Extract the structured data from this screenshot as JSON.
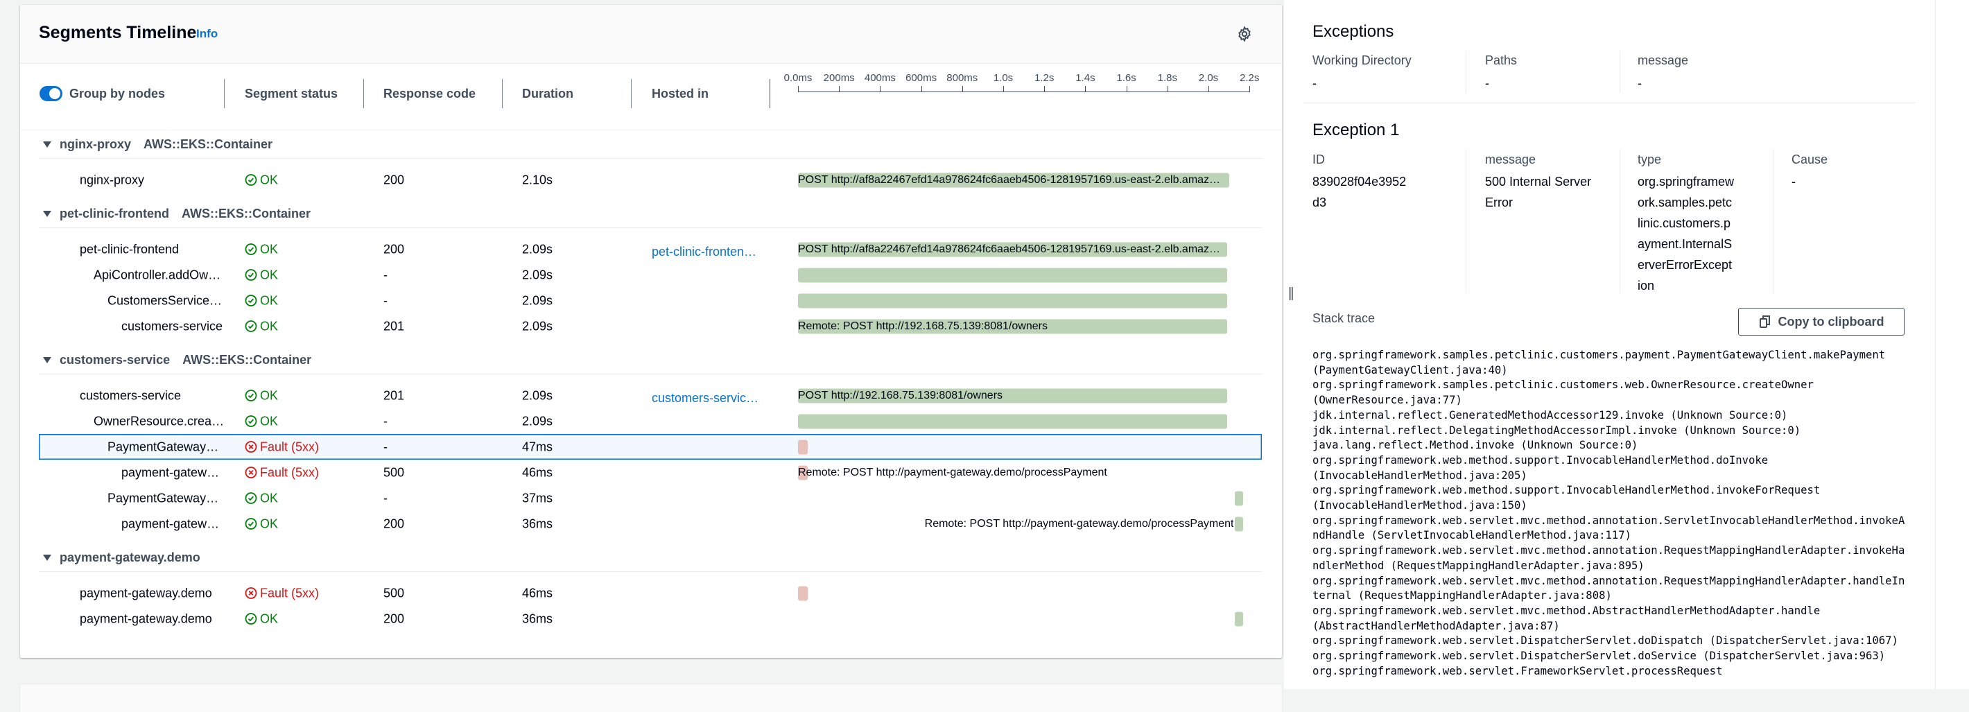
{
  "segments": {
    "title": "Segments Timeline",
    "info_link": "Info",
    "settings_icon": "gear-icon",
    "group_by_nodes": {
      "label": "Group by nodes",
      "enabled": true
    },
    "columns": [
      "Segment status",
      "Response code",
      "Duration",
      "Hosted in"
    ],
    "axis_ticks": [
      "0.0ms",
      "200ms",
      "400ms",
      "600ms",
      "800ms",
      "1.0s",
      "1.2s",
      "1.4s",
      "1.6s",
      "1.8s",
      "2.0s",
      "2.2s"
    ],
    "axis_max_s": 2.2,
    "colors": {
      "ok": "#037f0c",
      "fault": "#d91515",
      "ok_bar": "#bdd3b5",
      "fault_bar": "#e8c0ba",
      "link": "#0972d3"
    },
    "groups": [
      {
        "name": "nginx-proxy",
        "type": "AWS::EKS::Container",
        "rows": [
          {
            "name": "nginx-proxy",
            "level": 0,
            "status": "OK",
            "code": "200",
            "duration": "2.10s",
            "hosted_in": "",
            "start_s": 0,
            "dur_s": 2.1,
            "bar_label": "POST http://af8a22467efd14a978624fc6aaeb4506-1281957169.us-east-2.elb.amaz…"
          }
        ]
      },
      {
        "name": "pet-clinic-frontend",
        "type": "AWS::EKS::Container",
        "rows": [
          {
            "name": "pet-clinic-frontend",
            "level": 0,
            "status": "OK",
            "code": "200",
            "duration": "2.09s",
            "hosted_in": "pet-clinic-fronten…",
            "start_s": 0,
            "dur_s": 2.09,
            "bar_label": "POST http://af8a22467efd14a978624fc6aaeb4506-1281957169.us-east-2.elb.amaz…"
          },
          {
            "name": "ApiController.addOwner",
            "level": 1,
            "status": "OK",
            "code": "-",
            "duration": "2.09s",
            "hosted_in": "",
            "start_s": 0,
            "dur_s": 2.09,
            "bar_label": ""
          },
          {
            "name": "CustomersServiceCli…",
            "level": 2,
            "status": "OK",
            "code": "-",
            "duration": "2.09s",
            "hosted_in": "",
            "start_s": 0,
            "dur_s": 2.09,
            "bar_label": ""
          },
          {
            "name": "customers-service",
            "level": 3,
            "status": "OK",
            "code": "201",
            "duration": "2.09s",
            "hosted_in": "",
            "start_s": 0,
            "dur_s": 2.09,
            "bar_label": "Remote: POST http://192.168.75.139:8081/owners"
          }
        ]
      },
      {
        "name": "customers-service",
        "type": "AWS::EKS::Container",
        "rows": [
          {
            "name": "customers-service",
            "level": 0,
            "status": "OK",
            "code": "201",
            "duration": "2.09s",
            "hosted_in": "customers-servic…",
            "start_s": 0,
            "dur_s": 2.09,
            "bar_label": "POST http://192.168.75.139:8081/owners"
          },
          {
            "name": "OwnerResource.create…",
            "level": 1,
            "status": "OK",
            "code": "-",
            "duration": "2.09s",
            "hosted_in": "",
            "start_s": 0,
            "dur_s": 2.09,
            "bar_label": ""
          },
          {
            "name": "PaymentGatewayCli…",
            "level": 2,
            "status": "Fault (5xx)",
            "code": "-",
            "duration": "47ms",
            "hosted_in": "",
            "start_s": 0,
            "dur_s": 0.047,
            "bar_label": "",
            "selected": true
          },
          {
            "name": "payment-gateway.…",
            "level": 3,
            "status": "Fault (5xx)",
            "code": "500",
            "duration": "46ms",
            "hosted_in": "",
            "start_s": 0,
            "dur_s": 0.046,
            "bar_label": "Remote: POST http://payment-gateway.demo/processPayment"
          },
          {
            "name": "PaymentGatewayCli…",
            "level": 2,
            "status": "OK",
            "code": "-",
            "duration": "37ms",
            "hosted_in": "",
            "start_s": 2.13,
            "dur_s": 0.037,
            "bar_label": ""
          },
          {
            "name": "payment-gateway.…",
            "level": 3,
            "status": "OK",
            "code": "200",
            "duration": "36ms",
            "hosted_in": "",
            "start_s": 2.13,
            "dur_s": 0.036,
            "bar_label": "Remote: POST http://payment-gateway.demo/processPayment"
          }
        ]
      },
      {
        "name": "payment-gateway.demo",
        "type": "",
        "rows": [
          {
            "name": "payment-gateway.demo",
            "level": 0,
            "status": "Fault (5xx)",
            "code": "500",
            "duration": "46ms",
            "hosted_in": "",
            "start_s": 0,
            "dur_s": 0.046,
            "bar_label": ""
          },
          {
            "name": "payment-gateway.demo",
            "level": 0,
            "status": "OK",
            "code": "200",
            "duration": "36ms",
            "hosted_in": "",
            "start_s": 2.13,
            "dur_s": 0.036,
            "bar_label": ""
          }
        ]
      }
    ]
  },
  "exceptions": {
    "title": "Exceptions",
    "fields": [
      {
        "label": "Working Directory",
        "value": "-"
      },
      {
        "label": "Paths",
        "value": "-"
      },
      {
        "label": "message",
        "value": "-"
      }
    ],
    "exception1": {
      "title": "Exception 1",
      "fields": [
        {
          "label": "ID",
          "value": "839028f04e3952d3"
        },
        {
          "label": "message",
          "value": "500 Internal Server Error"
        },
        {
          "label": "type",
          "value": "org.springframework.samples.petclinic.customers.payment.InternalServerErrorException"
        },
        {
          "label": "Cause",
          "value": "-"
        }
      ],
      "stack_trace_label": "Stack trace",
      "copy_button": "Copy to clipboard",
      "stack_trace": [
        "org.springframework.samples.petclinic.customers.payment.PaymentGatewayClient.makePayment (PaymentGatewayClient.java:40)",
        "org.springframework.samples.petclinic.customers.web.OwnerResource.createOwner (OwnerResource.java:77)",
        "jdk.internal.reflect.GeneratedMethodAccessor129.invoke (Unknown Source:0)",
        "jdk.internal.reflect.DelegatingMethodAccessorImpl.invoke (Unknown Source:0)",
        "java.lang.reflect.Method.invoke (Unknown Source:0)",
        "org.springframework.web.method.support.InvocableHandlerMethod.doInvoke (InvocableHandlerMethod.java:205)",
        "org.springframework.web.method.support.InvocableHandlerMethod.invokeForRequest (InvocableHandlerMethod.java:150)",
        "org.springframework.web.servlet.mvc.method.annotation.ServletInvocableHandlerMethod.invokeAndHandle (ServletInvocableHandlerMethod.java:117)",
        "org.springframework.web.servlet.mvc.method.annotation.RequestMappingHandlerAdapter.invokeHandlerMethod (RequestMappingHandlerAdapter.java:895)",
        "org.springframework.web.servlet.mvc.method.annotation.RequestMappingHandlerAdapter.handleInternal (RequestMappingHandlerAdapter.java:808)",
        "org.springframework.web.servlet.mvc.method.AbstractHandlerMethodAdapter.handle (AbstractHandlerMethodAdapter.java:87)",
        "org.springframework.web.servlet.DispatcherServlet.doDispatch (DispatcherServlet.java:1067)",
        "org.springframework.web.servlet.DispatcherServlet.doService (DispatcherServlet.java:963)",
        "org.springframework.web.servlet.FrameworkServlet.processRequest"
      ]
    }
  }
}
